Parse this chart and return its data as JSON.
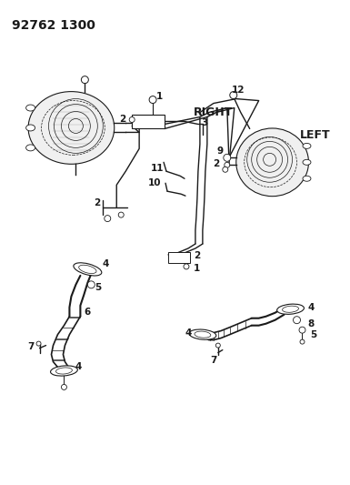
{
  "title": "92762 1300",
  "label_right": "RIGHT",
  "label_left": "LEFT",
  "bg_color": "#ffffff",
  "line_color": "#1a1a1a",
  "text_color": "#1a1a1a",
  "title_fontsize": 10,
  "label_fontsize": 9,
  "part_label_fontsize": 7.5,
  "figsize": [
    3.85,
    5.33
  ],
  "dpi": 100
}
